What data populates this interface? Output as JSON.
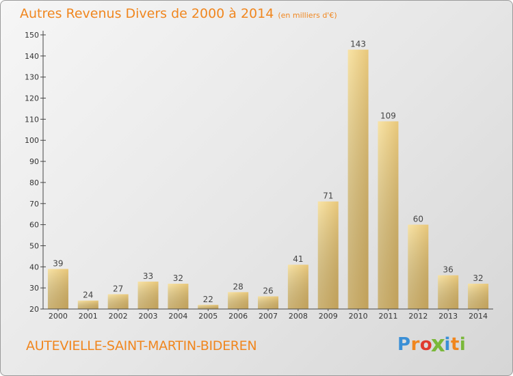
{
  "header": {
    "title": "Autres Revenus Divers de 2000 à 2014",
    "subtitle": "(en milliers d'€)"
  },
  "footer": {
    "commune": "AUTEVIELLE-SAINT-MARTIN-BIDEREN",
    "logo_letters": [
      "P",
      "r",
      "o",
      "x",
      "i",
      "t",
      "i"
    ],
    "logo_colors": [
      "#3a8fd6",
      "#f0861e",
      "#e03a2e",
      "#7ab83a",
      "#3a8fd6",
      "#f0861e",
      "#7ab83a"
    ]
  },
  "colors": {
    "accent": "#f0861e",
    "bar_top": "#f6dc98",
    "bar_bottom": "#c4a45e",
    "axis": "#444444"
  },
  "chart_data": {
    "type": "bar",
    "categories": [
      "2000",
      "2001",
      "2002",
      "2003",
      "2004",
      "2005",
      "2006",
      "2007",
      "2008",
      "2009",
      "2010",
      "2011",
      "2012",
      "2013",
      "2014"
    ],
    "values": [
      39,
      24,
      27,
      33,
      32,
      22,
      28,
      26,
      41,
      71,
      143,
      109,
      60,
      36,
      32
    ],
    "ylim": [
      20,
      150
    ],
    "yticks": [
      20,
      30,
      40,
      50,
      60,
      70,
      80,
      90,
      100,
      110,
      120,
      130,
      140,
      150
    ],
    "grid": false,
    "legend": "none"
  }
}
